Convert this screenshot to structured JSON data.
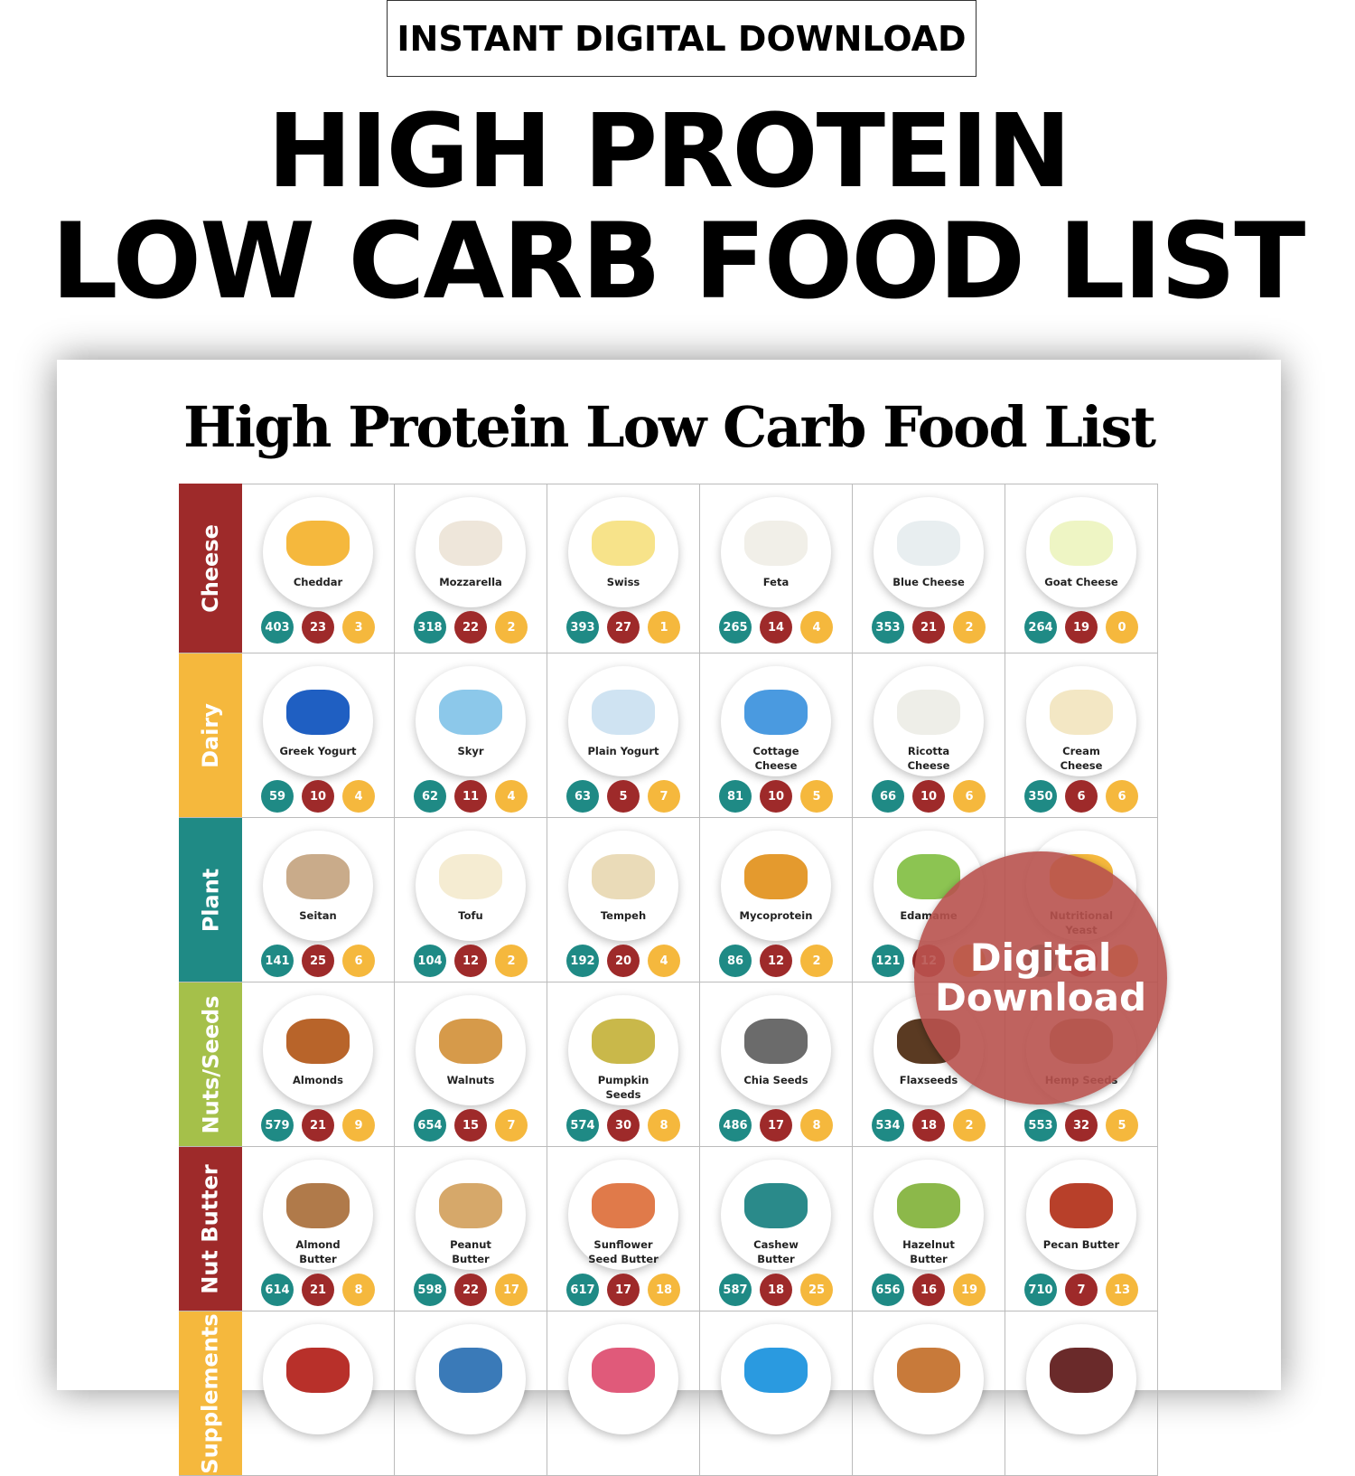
{
  "banner": "INSTANT DIGITAL DOWNLOAD",
  "headline": {
    "line1": "HIGH PROTEIN",
    "line2": "LOW CARB FOOD LIST"
  },
  "sheet_title": "High Protein Low Carb Food List",
  "badge": {
    "line1": "Digital",
    "line2": "Download"
  },
  "colors": {
    "calories": "#1f8a85",
    "protein": "#9e2a2a",
    "carbs": "#f5b83d"
  },
  "categories": [
    {
      "label": "Cheese",
      "color": "#9e2a2a",
      "foods": [
        {
          "name": "Cheddar",
          "values": [
            "403",
            "23",
            "3"
          ],
          "pic": "#f5b83d"
        },
        {
          "name": "Mozzarella",
          "values": [
            "318",
            "22",
            "2"
          ],
          "pic": "#eee6da"
        },
        {
          "name": "Swiss",
          "values": [
            "393",
            "27",
            "1"
          ],
          "pic": "#f7e38a"
        },
        {
          "name": "Feta",
          "values": [
            "265",
            "14",
            "4"
          ],
          "pic": "#f1efe8"
        },
        {
          "name": "Blue Cheese",
          "values": [
            "353",
            "21",
            "2"
          ],
          "pic": "#e8eef0"
        },
        {
          "name": "Goat Cheese",
          "values": [
            "264",
            "19",
            "0"
          ],
          "pic": "#eef5c4"
        }
      ]
    },
    {
      "label": "Dairy",
      "color": "#f5b83d",
      "foods": [
        {
          "name": "Greek Yogurt",
          "values": [
            "59",
            "10",
            "4"
          ],
          "pic": "#1f5fc2"
        },
        {
          "name": "Skyr",
          "values": [
            "62",
            "11",
            "4"
          ],
          "pic": "#8cc8ea"
        },
        {
          "name": "Plain Yogurt",
          "values": [
            "63",
            "5",
            "7"
          ],
          "pic": "#cfe3f2"
        },
        {
          "name": "Cottage Cheese",
          "values": [
            "81",
            "10",
            "5"
          ],
          "pic": "#4a9ae0"
        },
        {
          "name": "Ricotta Cheese",
          "values": [
            "66",
            "10",
            "6"
          ],
          "pic": "#eeeee8"
        },
        {
          "name": "Cream Cheese",
          "values": [
            "350",
            "6",
            "6"
          ],
          "pic": "#f3e7c4"
        }
      ]
    },
    {
      "label": "Plant",
      "color": "#1f8a85",
      "foods": [
        {
          "name": "Seitan",
          "values": [
            "141",
            "25",
            "6"
          ],
          "pic": "#c9ab8a"
        },
        {
          "name": "Tofu",
          "values": [
            "104",
            "12",
            "2"
          ],
          "pic": "#f5ecd2"
        },
        {
          "name": "Tempeh",
          "values": [
            "192",
            "20",
            "4"
          ],
          "pic": "#eadbb8"
        },
        {
          "name": "Mycoprotein",
          "values": [
            "86",
            "12",
            "2"
          ],
          "pic": "#e49a2e"
        },
        {
          "name": "Edamame",
          "values": [
            "121",
            "12",
            ""
          ],
          "pic": "#8cc452"
        },
        {
          "name": "Nutritional Yeast",
          "values": [
            "",
            "",
            ""
          ],
          "pic": "#f5b83d"
        }
      ]
    },
    {
      "label": "Nuts/Seeds",
      "color": "#a5c04a",
      "foods": [
        {
          "name": "Almonds",
          "values": [
            "579",
            "21",
            "9"
          ],
          "pic": "#b8642a"
        },
        {
          "name": "Walnuts",
          "values": [
            "654",
            "15",
            "7"
          ],
          "pic": "#d69a4a"
        },
        {
          "name": "Pumpkin Seeds",
          "values": [
            "574",
            "30",
            "8"
          ],
          "pic": "#c9b84a"
        },
        {
          "name": "Chia Seeds",
          "values": [
            "486",
            "17",
            "8"
          ],
          "pic": "#6b6b6b"
        },
        {
          "name": "Flaxseeds",
          "values": [
            "534",
            "18",
            "2"
          ],
          "pic": "#5a3a22"
        },
        {
          "name": "Hemp Seeds",
          "values": [
            "553",
            "32",
            "5"
          ],
          "pic": "#a08060"
        }
      ]
    },
    {
      "label": "Nut Butter",
      "color": "#9e2a2a",
      "foods": [
        {
          "name": "Almond Butter",
          "values": [
            "614",
            "21",
            "8"
          ],
          "pic": "#b07a4a"
        },
        {
          "name": "Peanut Butter",
          "values": [
            "598",
            "22",
            "17"
          ],
          "pic": "#d6a86a"
        },
        {
          "name": "Sunflower Seed Butter",
          "values": [
            "617",
            "17",
            "18"
          ],
          "pic": "#e07a4a"
        },
        {
          "name": "Cashew Butter",
          "values": [
            "587",
            "18",
            "25"
          ],
          "pic": "#2a8a8a"
        },
        {
          "name": "Hazelnut Butter",
          "values": [
            "656",
            "16",
            "19"
          ],
          "pic": "#8cb84a"
        },
        {
          "name": "Pecan Butter",
          "values": [
            "710",
            "7",
            "13"
          ],
          "pic": "#b8402a"
        }
      ]
    },
    {
      "label": "Supplements",
      "color": "#f5b83d",
      "foods": [
        {
          "name": "",
          "values": [],
          "pic": "#b8302a"
        },
        {
          "name": "",
          "values": [],
          "pic": "#3a7ab8"
        },
        {
          "name": "",
          "values": [],
          "pic": "#e05a7a"
        },
        {
          "name": "",
          "values": [],
          "pic": "#2a9ae0"
        },
        {
          "name": "",
          "values": [],
          "pic": "#c87a3a"
        },
        {
          "name": "",
          "values": [],
          "pic": "#6a2a2a"
        }
      ]
    }
  ]
}
